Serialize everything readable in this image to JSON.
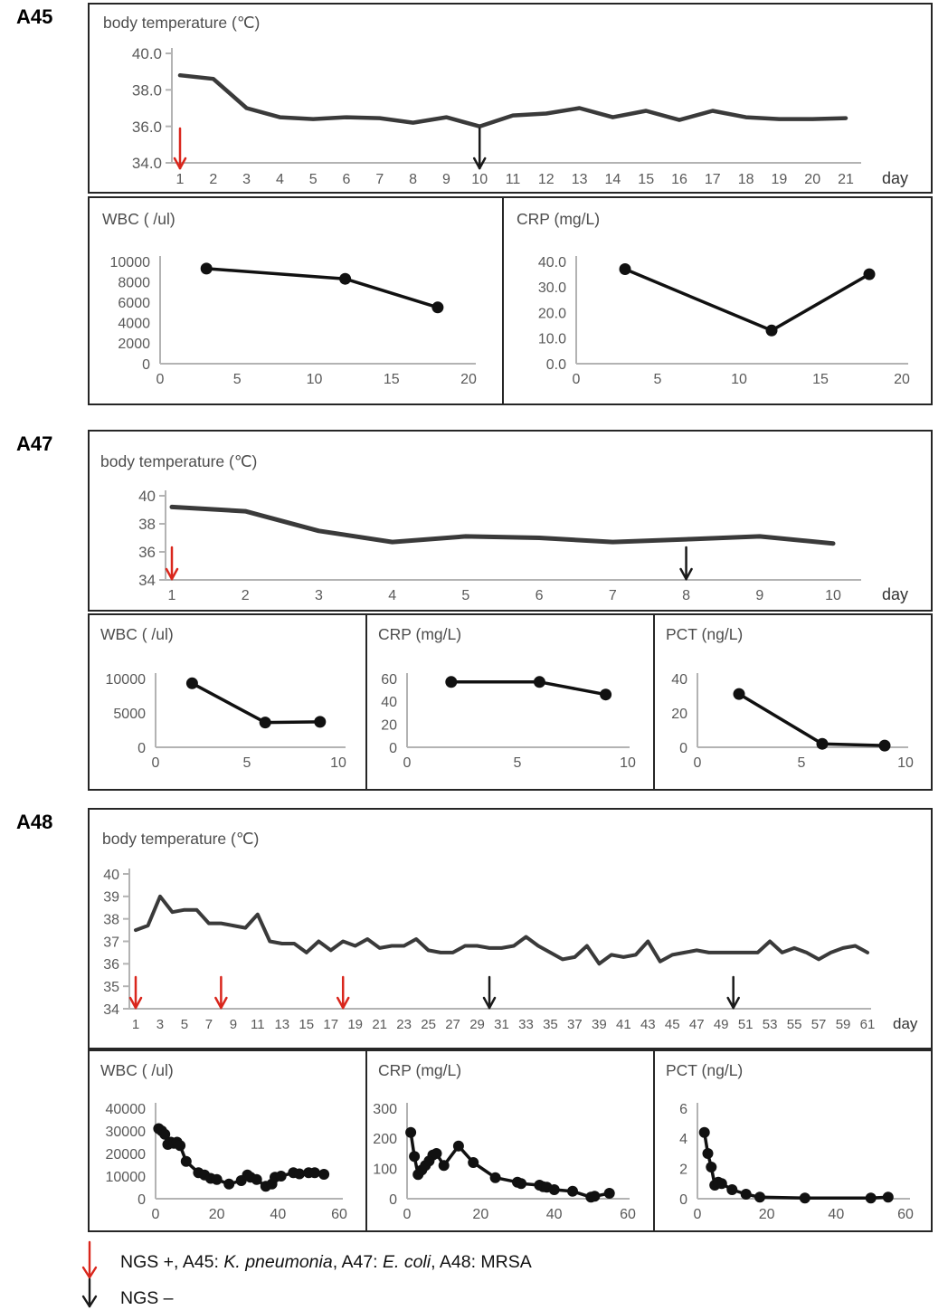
{
  "panels": [
    {
      "label": "A45"
    },
    {
      "label": "A47"
    },
    {
      "label": "A48"
    }
  ],
  "colors": {
    "red_arrow": "#d9261c",
    "black_arrow": "#1a1a1a",
    "temp_line": "#3a3a3a",
    "lab_line": "#111111",
    "axis": "#b3b3b3",
    "tick_text": "#595959"
  },
  "legend": {
    "ngs_positive": {
      "arrow_icon": "red-down-arrow",
      "parts": [
        {
          "text": "NGS +, A45: ",
          "italic": false
        },
        {
          "text": "K. pneumonia",
          "italic": true
        },
        {
          "text": ", A47: ",
          "italic": false
        },
        {
          "text": "E. coli",
          "italic": true
        },
        {
          "text": ", A48: MRSA",
          "italic": false
        }
      ]
    },
    "ngs_negative": {
      "arrow_icon": "black-down-arrow",
      "text": "NGS –"
    }
  },
  "chart_data": [
    {
      "key": "a45_temp",
      "panel": "A45",
      "type": "line",
      "title": "body temperature (℃)",
      "x_axis_label": "day",
      "xlim": [
        1,
        21
      ],
      "ylim": [
        34,
        40
      ],
      "markers": false,
      "line_color": "#3a3a3a",
      "xticks": {
        "values": [
          1,
          2,
          3,
          4,
          5,
          6,
          7,
          8,
          9,
          10,
          11,
          12,
          13,
          14,
          15,
          16,
          17,
          18,
          19,
          20,
          21
        ],
        "labels": [
          "1",
          "2",
          "3",
          "4",
          "5",
          "6",
          "7",
          "8",
          "9",
          "10",
          "11",
          "12",
          "13",
          "14",
          "15",
          "16",
          "17",
          "18",
          "19",
          "20",
          "21"
        ]
      },
      "yticks": {
        "values": [
          40,
          38,
          36,
          34
        ],
        "labels": [
          "40.0",
          "38.0",
          "36.0",
          "34.0"
        ]
      },
      "x": [
        1,
        2,
        3,
        4,
        5,
        6,
        7,
        8,
        9,
        10,
        11,
        12,
        13,
        14,
        15,
        16,
        17,
        18,
        19,
        20,
        21
      ],
      "y": [
        38.8,
        38.6,
        37.0,
        36.5,
        36.4,
        36.5,
        36.45,
        36.2,
        36.5,
        36.0,
        36.6,
        36.7,
        37.0,
        36.5,
        36.85,
        36.35,
        36.85,
        36.5,
        36.4,
        36.4,
        36.45
      ],
      "arrows": [
        {
          "day": 1,
          "color": "red_arrow"
        },
        {
          "day": 10,
          "color": "black_arrow"
        }
      ]
    },
    {
      "key": "a45_wbc",
      "panel": "A45",
      "type": "line",
      "title": "WBC ( /ul)",
      "xlim": [
        0,
        20
      ],
      "ylim": [
        0,
        10000
      ],
      "markers": true,
      "line_color": "#111111",
      "xticks": {
        "values": [
          0,
          5,
          10,
          15,
          20
        ],
        "labels": [
          "0",
          "5",
          "10",
          "15",
          "20"
        ]
      },
      "yticks": {
        "values": [
          10000,
          8000,
          6000,
          4000,
          2000,
          0
        ],
        "labels": [
          "10000",
          "8000",
          "6000",
          "4000",
          "2000",
          "0"
        ]
      },
      "x": [
        3,
        12,
        18
      ],
      "y": [
        9300,
        8300,
        5500
      ]
    },
    {
      "key": "a45_crp",
      "panel": "A45",
      "type": "line",
      "title": "CRP (mg/L)",
      "xlim": [
        0,
        20
      ],
      "ylim": [
        0,
        40
      ],
      "markers": true,
      "line_color": "#111111",
      "xticks": {
        "values": [
          0,
          5,
          10,
          15,
          20
        ],
        "labels": [
          "0",
          "5",
          "10",
          "15",
          "20"
        ]
      },
      "yticks": {
        "values": [
          40,
          30,
          20,
          10,
          0
        ],
        "labels": [
          "40.0",
          "30.0",
          "20.0",
          "10.0",
          "0.0"
        ]
      },
      "x": [
        3,
        12,
        18
      ],
      "y": [
        37,
        13,
        35
      ]
    },
    {
      "key": "a47_temp",
      "panel": "A47",
      "type": "line",
      "title": "body temperature (℃)",
      "x_axis_label": "day",
      "xlim": [
        1,
        10
      ],
      "ylim": [
        34,
        40
      ],
      "markers": false,
      "line_color": "#3a3a3a",
      "xticks": {
        "values": [
          1,
          2,
          3,
          4,
          5,
          6,
          7,
          8,
          9,
          10
        ],
        "labels": [
          "1",
          "2",
          "3",
          "4",
          "5",
          "6",
          "7",
          "8",
          "9",
          "10"
        ]
      },
      "yticks": {
        "values": [
          40,
          38,
          36,
          34
        ],
        "labels": [
          "40",
          "38",
          "36",
          "34"
        ]
      },
      "x": [
        1,
        2,
        3,
        4,
        5,
        6,
        7,
        8,
        9,
        10
      ],
      "y": [
        39.2,
        38.9,
        37.5,
        36.7,
        37.1,
        37.0,
        36.7,
        36.9,
        37.1,
        36.6
      ],
      "arrows": [
        {
          "day": 1,
          "color": "red_arrow"
        },
        {
          "day": 8,
          "color": "black_arrow"
        }
      ]
    },
    {
      "key": "a47_wbc",
      "panel": "A47",
      "type": "line",
      "title": "WBC ( /ul)",
      "xlim": [
        0,
        10
      ],
      "ylim": [
        0,
        10000
      ],
      "markers": true,
      "line_color": "#111111",
      "xticks": {
        "values": [
          0,
          5,
          10
        ],
        "labels": [
          "0",
          "5",
          "10"
        ]
      },
      "yticks": {
        "values": [
          10000,
          5000,
          0
        ],
        "labels": [
          "10000",
          "5000",
          "0"
        ]
      },
      "x": [
        2,
        6,
        9
      ],
      "y": [
        9300,
        3600,
        3700
      ]
    },
    {
      "key": "a47_crp",
      "panel": "A47",
      "type": "line",
      "title": "CRP (mg/L)",
      "xlim": [
        0,
        10
      ],
      "ylim": [
        0,
        60
      ],
      "markers": true,
      "line_color": "#111111",
      "xticks": {
        "values": [
          0,
          5,
          10
        ],
        "labels": [
          "0",
          "5",
          "10"
        ]
      },
      "yticks": {
        "values": [
          60,
          40,
          20,
          0
        ],
        "labels": [
          "60",
          "40",
          "20",
          "0"
        ]
      },
      "x": [
        2,
        6,
        9
      ],
      "y": [
        57,
        57,
        46
      ]
    },
    {
      "key": "a47_pct",
      "panel": "A47",
      "type": "line",
      "title": "PCT (ng/L)",
      "xlim": [
        0,
        10
      ],
      "ylim": [
        0,
        40
      ],
      "markers": true,
      "line_color": "#111111",
      "xticks": {
        "values": [
          0,
          5,
          10
        ],
        "labels": [
          "0",
          "5",
          "10"
        ]
      },
      "yticks": {
        "values": [
          40,
          20,
          0
        ],
        "labels": [
          "40",
          "20",
          "0"
        ]
      },
      "x": [
        2,
        6,
        9
      ],
      "y": [
        31,
        2,
        1
      ]
    },
    {
      "key": "a48_temp",
      "panel": "A48",
      "type": "line",
      "title": "body temperature (℃)",
      "x_axis_label": "day",
      "xlim": [
        1,
        61
      ],
      "ylim": [
        34,
        40
      ],
      "markers": false,
      "line_color": "#3a3a3a",
      "xticks": {
        "values": [
          1,
          3,
          5,
          7,
          9,
          11,
          13,
          15,
          17,
          19,
          21,
          23,
          25,
          27,
          29,
          31,
          33,
          35,
          37,
          39,
          41,
          43,
          45,
          47,
          49,
          51,
          53,
          55,
          57,
          59,
          61
        ],
        "labels": [
          "1",
          "3",
          "5",
          "7",
          "9",
          "11",
          "13",
          "15",
          "17",
          "19",
          "21",
          "23",
          "25",
          "27",
          "29",
          "31",
          "33",
          "35",
          "37",
          "39",
          "41",
          "43",
          "45",
          "47",
          "49",
          "51",
          "53",
          "55",
          "57",
          "59",
          "61"
        ]
      },
      "yticks": {
        "values": [
          40,
          39,
          38,
          37,
          36,
          35,
          34
        ],
        "labels": [
          "40",
          "39",
          "38",
          "37",
          "36",
          "35",
          "34"
        ]
      },
      "x": [
        1,
        2,
        3,
        4,
        5,
        6,
        7,
        8,
        9,
        10,
        11,
        12,
        13,
        14,
        15,
        16,
        17,
        18,
        19,
        20,
        21,
        22,
        23,
        24,
        25,
        26,
        27,
        28,
        29,
        30,
        31,
        32,
        33,
        34,
        35,
        36,
        37,
        38,
        39,
        40,
        41,
        42,
        43,
        44,
        45,
        46,
        47,
        48,
        49,
        50,
        51,
        52,
        53,
        54,
        55,
        56,
        57,
        58,
        59,
        60,
        61
      ],
      "y": [
        37.5,
        37.7,
        39.0,
        38.3,
        38.4,
        38.4,
        37.8,
        37.8,
        37.7,
        37.6,
        38.2,
        37.0,
        36.9,
        36.9,
        36.5,
        37.0,
        36.6,
        37.0,
        36.8,
        37.1,
        36.7,
        36.8,
        36.8,
        37.1,
        36.6,
        36.5,
        36.5,
        36.8,
        36.8,
        36.7,
        36.7,
        36.8,
        37.2,
        36.8,
        36.5,
        36.2,
        36.3,
        36.8,
        36.0,
        36.4,
        36.3,
        36.4,
        37.0,
        36.1,
        36.4,
        36.5,
        36.6,
        36.5,
        36.5,
        36.5,
        36.5,
        36.5,
        37.0,
        36.5,
        36.7,
        36.5,
        36.2,
        36.5,
        36.7,
        36.8,
        36.5
      ],
      "arrows": [
        {
          "day": 1,
          "color": "red_arrow"
        },
        {
          "day": 8,
          "color": "red_arrow"
        },
        {
          "day": 18,
          "color": "red_arrow"
        },
        {
          "day": 30,
          "color": "black_arrow"
        },
        {
          "day": 50,
          "color": "black_arrow"
        }
      ]
    },
    {
      "key": "a48_wbc",
      "panel": "A48",
      "type": "line",
      "title": "WBC ( /ul)",
      "xlim": [
        0,
        60
      ],
      "ylim": [
        0,
        40000
      ],
      "markers": true,
      "line_color": "#111111",
      "xticks": {
        "values": [
          0,
          20,
          40,
          60
        ],
        "labels": [
          "0",
          "20",
          "40",
          "60"
        ]
      },
      "yticks": {
        "values": [
          40000,
          30000,
          20000,
          10000,
          0
        ],
        "labels": [
          "40000",
          "30000",
          "20000",
          "10000",
          "0"
        ]
      },
      "x": [
        1,
        2,
        3,
        4,
        5,
        6,
        7,
        8,
        10,
        14,
        16,
        18,
        20,
        24,
        28,
        30,
        31,
        33,
        36,
        38,
        39,
        41,
        45,
        47,
        50,
        52,
        55
      ],
      "y": [
        31000,
        30000,
        28500,
        24000,
        25000,
        24500,
        25000,
        23500,
        16500,
        11500,
        10500,
        9000,
        8500,
        6500,
        8000,
        10500,
        9500,
        8500,
        5500,
        6500,
        9500,
        10000,
        11500,
        11000,
        11500,
        11500,
        10800
      ]
    },
    {
      "key": "a48_crp",
      "panel": "A48",
      "type": "line",
      "title": "CRP (mg/L)",
      "xlim": [
        0,
        60
      ],
      "ylim": [
        0,
        300
      ],
      "markers": true,
      "line_color": "#111111",
      "xticks": {
        "values": [
          0,
          20,
          40,
          60
        ],
        "labels": [
          "0",
          "20",
          "40",
          "60"
        ]
      },
      "yticks": {
        "values": [
          300,
          200,
          100,
          0
        ],
        "labels": [
          "300",
          "200",
          "100",
          "0"
        ]
      },
      "x": [
        1,
        2,
        3,
        4,
        5,
        6,
        7,
        8,
        10,
        14,
        18,
        24,
        30,
        31,
        36,
        37,
        38,
        40,
        45,
        50,
        51,
        55
      ],
      "y": [
        220,
        140,
        80,
        95,
        110,
        125,
        145,
        150,
        110,
        175,
        120,
        70,
        55,
        50,
        45,
        40,
        38,
        30,
        25,
        5,
        8,
        18
      ]
    },
    {
      "key": "a48_pct",
      "panel": "A48",
      "type": "line",
      "title": "PCT (ng/L)",
      "xlim": [
        0,
        60
      ],
      "ylim": [
        0,
        6
      ],
      "markers": true,
      "line_color": "#111111",
      "xticks": {
        "values": [
          0,
          20,
          40,
          60
        ],
        "labels": [
          "0",
          "20",
          "40",
          "60"
        ]
      },
      "yticks": {
        "values": [
          6,
          4,
          2,
          0
        ],
        "labels": [
          "6",
          "4",
          "2",
          "0"
        ]
      },
      "x": [
        2,
        3,
        4,
        5,
        6,
        7,
        10,
        14,
        18,
        31,
        50,
        55
      ],
      "y": [
        4.4,
        3.0,
        2.1,
        0.9,
        1.1,
        1.0,
        0.6,
        0.3,
        0.1,
        0.05,
        0.05,
        0.1
      ]
    }
  ]
}
